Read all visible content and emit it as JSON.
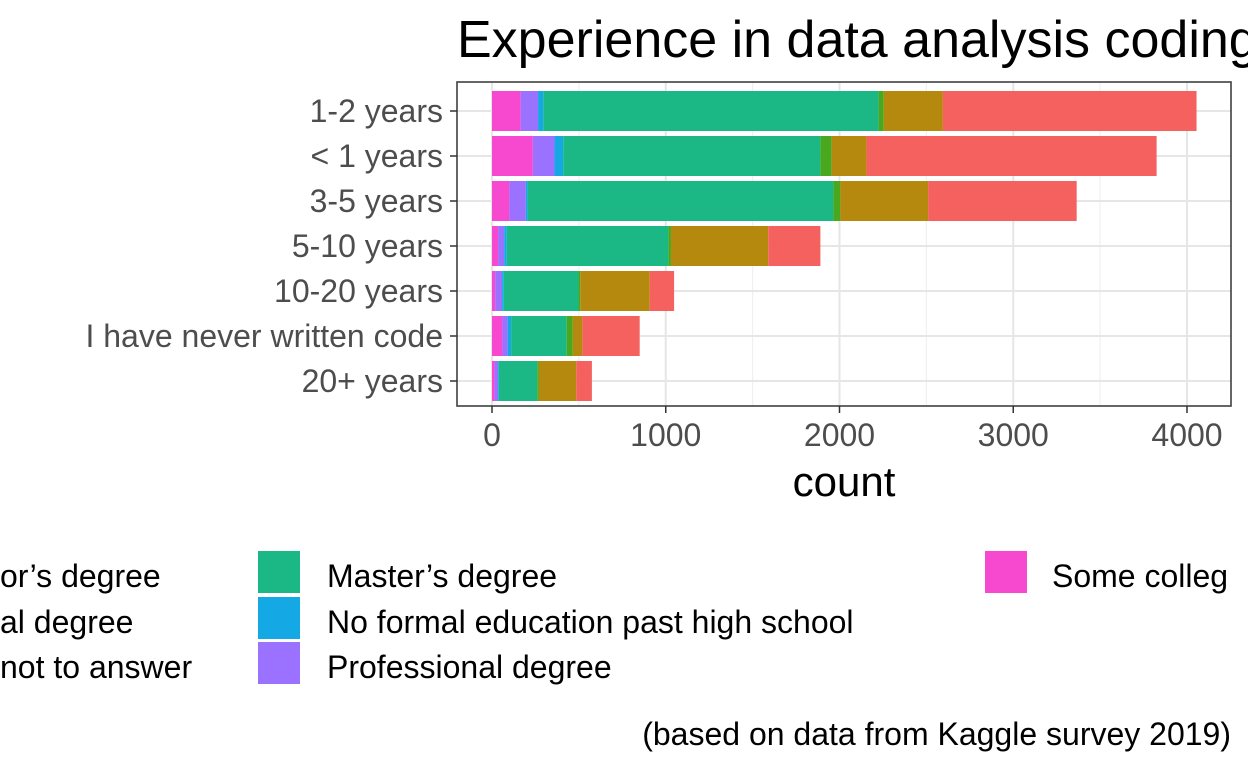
{
  "chart_data": {
    "type": "bar",
    "orientation": "horizontal",
    "stacked": true,
    "title": "Experience in data analysis coding",
    "xlabel": "count",
    "ylabel": "",
    "caption": "(based on data from Kaggle survey 2019)",
    "xlim": [
      0,
      4200
    ],
    "x_ticks": [
      0,
      1000,
      2000,
      3000,
      4000
    ],
    "grid": true,
    "legend_position": "bottom",
    "categories": [
      "1-2 years",
      "< 1 years",
      "3-5 years",
      "5-10 years",
      "10-20 years",
      "I have never written code",
      "20+ years"
    ],
    "series": [
      {
        "name": "Some college/university study without earning a bachelor’s degree",
        "color": "#F748D0",
        "values": [
          165,
          235,
          100,
          35,
          18,
          60,
          15
        ]
      },
      {
        "name": "Professional degree",
        "color": "#9B72FF",
        "values": [
          100,
          125,
          95,
          35,
          40,
          30,
          20
        ]
      },
      {
        "name": "No formal education past high school",
        "color": "#14A9E4",
        "values": [
          30,
          50,
          10,
          15,
          10,
          20,
          5
        ]
      },
      {
        "name": "Master’s degree",
        "color": "#1BB885",
        "values": [
          1930,
          1480,
          1760,
          930,
          430,
          320,
          220
        ]
      },
      {
        "name": "I prefer not to answer",
        "color": "#4AA81E",
        "values": [
          30,
          65,
          40,
          15,
          10,
          35,
          10
        ]
      },
      {
        "name": "Doctoral degree",
        "color": "#B5890E",
        "values": [
          340,
          200,
          505,
          560,
          400,
          55,
          215
        ]
      },
      {
        "name": "Bachelor’s degree",
        "color": "#F5615E",
        "values": [
          1460,
          1670,
          855,
          300,
          140,
          330,
          90
        ]
      }
    ],
    "legend_visible_text": [
      "or’s degree",
      "al degree",
      "not to answer",
      "Master’s degree",
      "No formal education past high school",
      "Professional degree",
      "Some colleg"
    ]
  }
}
